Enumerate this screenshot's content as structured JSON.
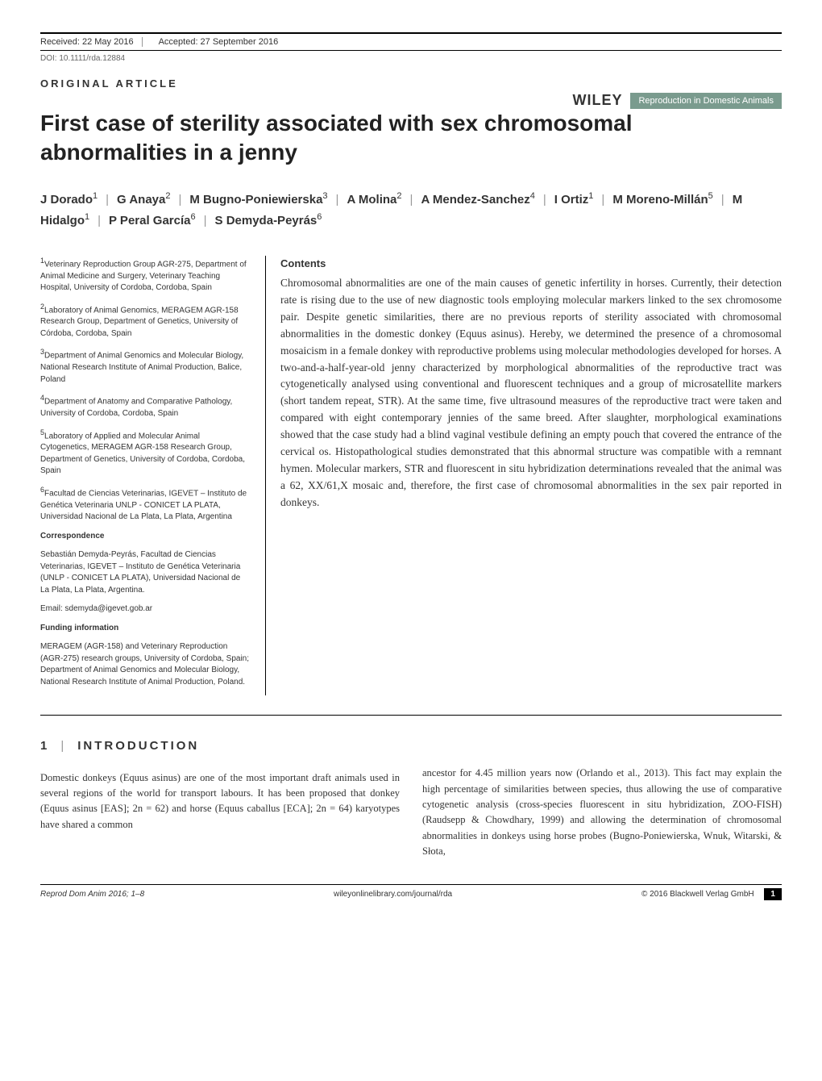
{
  "topBar": {
    "received": "Received: 22 May 2016",
    "accepted": "Accepted: 27 September 2016"
  },
  "doi": "DOI: 10.1111/rda.12884",
  "articleType": "ORIGINAL ARTICLE",
  "brand": {
    "publisher": "WILEY",
    "journal": "Reproduction in Domestic Animals",
    "journalBg": "#7a9b8e"
  },
  "title": "First case of sterility associated with sex chromosomal abnormalities in a jenny",
  "authors": [
    {
      "name": "J Dorado",
      "aff": "1"
    },
    {
      "name": "G Anaya",
      "aff": "2"
    },
    {
      "name": "M Bugno-Poniewierska",
      "aff": "3"
    },
    {
      "name": "A Molina",
      "aff": "2"
    },
    {
      "name": "A Mendez-Sanchez",
      "aff": "4"
    },
    {
      "name": "I Ortiz",
      "aff": "1"
    },
    {
      "name": "M Moreno-Millán",
      "aff": "5"
    },
    {
      "name": "M Hidalgo",
      "aff": "1"
    },
    {
      "name": "P Peral García",
      "aff": "6"
    },
    {
      "name": "S Demyda-Peyrás",
      "aff": "6"
    }
  ],
  "affiliations": [
    "Veterinary Reproduction Group AGR-275, Department of Animal Medicine and Surgery, Veterinary Teaching Hospital, University of Cordoba, Cordoba, Spain",
    "Laboratory of Animal Genomics, MERAGEM AGR-158 Research Group, Department of Genetics, University of Córdoba, Cordoba, Spain",
    "Department of Animal Genomics and Molecular Biology, National Research Institute of Animal Production, Balice, Poland",
    "Department of Anatomy and Comparative Pathology, University of Cordoba, Cordoba, Spain",
    "Laboratory of Applied and Molecular Animal Cytogenetics, MERAGEM AGR-158 Research Group, Department of Genetics, University of Cordoba, Cordoba, Spain",
    "Facultad de Ciencias Veterinarias, IGEVET – Instituto de Genética Veterinaria UNLP - CONICET LA PLATA, Universidad Nacional de La Plata, La Plata, Argentina"
  ],
  "correspondence": {
    "label": "Correspondence",
    "text": "Sebastián Demyda-Peyrás, Facultad de Ciencias Veterinarias, IGEVET – Instituto de Genética Veterinaria (UNLP - CONICET LA PLATA), Universidad Nacional de La Plata, La Plata, Argentina.",
    "email": "Email: sdemyda@igevet.gob.ar"
  },
  "funding": {
    "label": "Funding information",
    "text": "MERAGEM (AGR-158) and Veterinary Reproduction (AGR-275) research groups, University of Cordoba, Spain; Department of Animal Genomics and Molecular Biology, National Research Institute of Animal Production, Poland."
  },
  "abstract": {
    "label": "Contents",
    "text": "Chromosomal abnormalities are one of the main causes of genetic infertility in horses. Currently, their detection rate is rising due to the use of new diagnostic tools employing molecular markers linked to the sex chromosome pair. Despite genetic similarities, there are no previous reports of sterility associated with chromosomal abnormalities in the domestic donkey (Equus asinus). Hereby, we determined the presence of a chromosomal mosaicism in a female donkey with reproductive problems using molecular methodologies developed for horses. A two-and-a-half-year-old jenny characterized by morphological abnormalities of the reproductive tract was cytogenetically analysed using conventional and fluorescent techniques and a group of microsatellite markers (short tandem repeat, STR). At the same time, five ultrasound measures of the reproductive tract were taken and compared with eight contemporary jennies of the same breed. After slaughter, morphological examinations showed that the case study had a blind vaginal vestibule defining an empty pouch that covered the entrance of the cervical os. Histopathological studies demonstrated that this abnormal structure was compatible with a remnant hymen. Molecular markers, STR and fluorescent in situ hybridization determinations revealed that the animal was a 62, XX/61,X mosaic and, therefore, the first case of chromosomal abnormalities in the sex pair reported in donkeys."
  },
  "intro": {
    "num": "1",
    "heading": "INTRODUCTION",
    "col1": "Domestic donkeys (Equus asinus) are one of the most important draft animals used in several regions of the world for transport labours. It has been proposed that donkey (Equus asinus [EAS]; 2n = 62) and horse (Equus caballus [ECA]; 2n = 64) karyotypes have shared a common",
    "col2": "ancestor for 4.45 million years now (Orlando et al., 2013). This fact may explain the high percentage of similarities between species, thus allowing the use of comparative cytogenetic analysis (cross-species fluorescent in situ hybridization, ZOO-FISH) (Raudsepp & Chowdhary, 1999) and allowing the determination of chromosomal abnormalities in donkeys using horse probes (Bugno-Poniewierska, Wnuk, Witarski, & Słota,"
  },
  "footer": {
    "left": "Reprod Dom Anim 2016; 1–8",
    "center": "wileyonlinelibrary.com/journal/rda",
    "right": "© 2016 Blackwell Verlag GmbH",
    "page": "1"
  },
  "style": {
    "accent": "#7a9b8e",
    "bodyFont": "Georgia, 'Times New Roman', serif",
    "sansFont": "Arial, sans-serif",
    "titleSize": 28,
    "abstractSize": 13.5,
    "affilSize": 10
  }
}
